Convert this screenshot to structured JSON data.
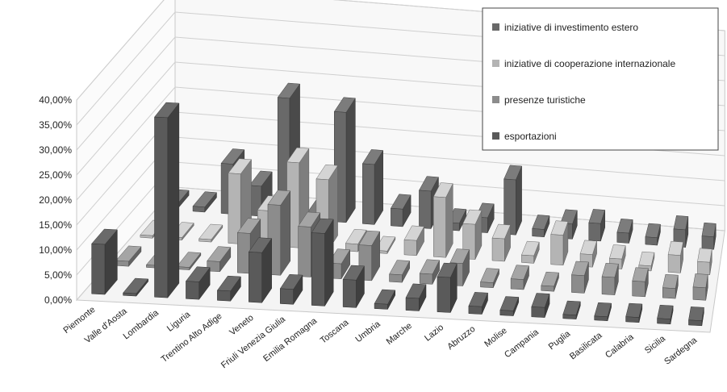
{
  "chart_data": {
    "type": "bar",
    "variant": "3d-column",
    "categories": [
      "Piemonte",
      "Valle d'Aosta",
      "Lombardia",
      "Liguria",
      "Trentino Alto Adige",
      "Veneto",
      "Friuli Venezia Giulia",
      "Emilia Romagna",
      "Toscana",
      "Umbria",
      "Marche",
      "Lazio",
      "Abruzzo",
      "Molise",
      "Campania",
      "Puglia",
      "Basilicata",
      "Calabria",
      "Sicilia",
      "Sardegna"
    ],
    "series": [
      {
        "name": "esportazioni",
        "color": "#5a5a5a",
        "values": [
          10.0,
          0.5,
          36.0,
          3.5,
          2.0,
          10.0,
          3.0,
          14.5,
          5.5,
          1.0,
          2.5,
          7.0,
          1.5,
          1.0,
          2.0,
          0.8,
          0.8,
          1.0,
          1.0,
          1.0
        ]
      },
      {
        "name": "presenze turistiche",
        "color": "#8c8c8c",
        "values": [
          1.0,
          0.5,
          0.5,
          2.0,
          8.0,
          14.0,
          10.0,
          3.0,
          7.0,
          1.5,
          2.0,
          4.5,
          1.0,
          2.0,
          1.0,
          3.5,
          3.5,
          3.0,
          2.0,
          2.5
        ]
      },
      {
        "name": "iniziative di cooperazione internazionale",
        "color": "#b4b4b4",
        "values": [
          0.5,
          0.5,
          0.5,
          14.0,
          7.0,
          17.0,
          14.0,
          1.5,
          0.5,
          3.0,
          12.0,
          7.0,
          4.5,
          1.5,
          6.0,
          2.5,
          2.0,
          1.0,
          3.5,
          2.5
        ]
      },
      {
        "name": "iniziative di investimento estero",
        "color": "#696969",
        "values": [
          1.0,
          1.0,
          10.0,
          6.0,
          24.0,
          1.0,
          22.0,
          12.0,
          3.5,
          7.5,
          1.5,
          3.0,
          11.0,
          1.5,
          3.0,
          3.5,
          2.0,
          1.5,
          3.5,
          2.5
        ]
      }
    ],
    "yticks": [
      "0,00%",
      "5,00%",
      "10,00%",
      "15,00%",
      "20,00%",
      "25,00%",
      "30,00%",
      "35,00%",
      "40,00%"
    ],
    "ylim": [
      0,
      40
    ],
    "grid": true,
    "legend_position": "top-right",
    "legend": [
      "iniziative di investimento estero",
      "iniziative di cooperazione internazionale",
      "presenze turistiche",
      "esportazioni"
    ]
  }
}
